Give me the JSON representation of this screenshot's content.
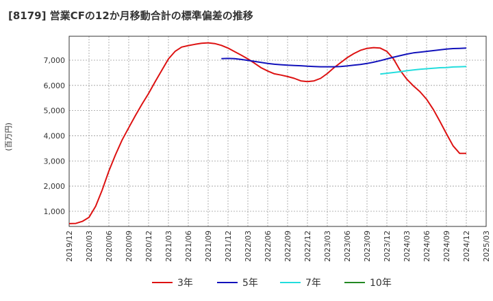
{
  "title": "[8179]  営業CFの12か月移動合計の標準偏差の推移",
  "chart_data": {
    "type": "line",
    "title": "[8179]  営業CFの12か月移動合計の標準偏差の推移",
    "ylabel": "(百万円)",
    "xlabel": "",
    "ylim": [
      400,
      7950
    ],
    "y_ticks": [
      1000,
      2000,
      3000,
      4000,
      5000,
      6000,
      7000
    ],
    "y_tick_labels": [
      "1,000",
      "2,000",
      "3,000",
      "4,000",
      "5,000",
      "6,000",
      "7,000"
    ],
    "x_tick_labels": [
      "2019/12",
      "2020/03",
      "2020/06",
      "2020/09",
      "2020/12",
      "2021/03",
      "2021/06",
      "2021/09",
      "2021/12",
      "2022/03",
      "2022/06",
      "2022/09",
      "2022/12",
      "2023/03",
      "2023/06",
      "2023/09",
      "2023/12",
      "2024/03",
      "2024/06",
      "2024/09",
      "2024/12",
      "2025/03"
    ],
    "grid": true,
    "legend_position": "bottom",
    "series": [
      {
        "name": "3年",
        "color": "#dd1111",
        "x": [
          "2019/12",
          "2020/01",
          "2020/02",
          "2020/03",
          "2020/04",
          "2020/05",
          "2020/06",
          "2020/07",
          "2020/08",
          "2020/09",
          "2020/10",
          "2020/11",
          "2020/12",
          "2021/01",
          "2021/02",
          "2021/03",
          "2021/04",
          "2021/05",
          "2021/06",
          "2021/07",
          "2021/08",
          "2021/09",
          "2021/10",
          "2021/11",
          "2021/12",
          "2022/01",
          "2022/02",
          "2022/03",
          "2022/04",
          "2022/05",
          "2022/06",
          "2022/07",
          "2022/08",
          "2022/09",
          "2022/10",
          "2022/11",
          "2022/12",
          "2023/01",
          "2023/02",
          "2023/03",
          "2023/04",
          "2023/05",
          "2023/06",
          "2023/07",
          "2023/08",
          "2023/09",
          "2023/10",
          "2023/11",
          "2023/12",
          "2024/01",
          "2024/02",
          "2024/03",
          "2024/04",
          "2024/05",
          "2024/06",
          "2024/07",
          "2024/08",
          "2024/09",
          "2024/10",
          "2024/11",
          "2024/12"
        ],
        "values": [
          510,
          520,
          600,
          760,
          1200,
          1850,
          2600,
          3250,
          3830,
          4320,
          4800,
          5250,
          5680,
          6150,
          6600,
          7050,
          7350,
          7520,
          7580,
          7630,
          7670,
          7690,
          7660,
          7590,
          7480,
          7340,
          7200,
          7050,
          6880,
          6700,
          6570,
          6460,
          6410,
          6350,
          6280,
          6180,
          6150,
          6180,
          6280,
          6470,
          6700,
          6900,
          7100,
          7260,
          7390,
          7470,
          7500,
          7480,
          7350,
          7050,
          6600,
          6250,
          5980,
          5750,
          5450,
          5050,
          4580,
          4080,
          3600,
          3300,
          3300
        ]
      },
      {
        "name": "5年",
        "color": "#1111bb",
        "x": [
          "2021/11",
          "2021/12",
          "2022/01",
          "2022/02",
          "2022/03",
          "2022/04",
          "2022/05",
          "2022/06",
          "2022/07",
          "2022/08",
          "2022/09",
          "2022/10",
          "2022/11",
          "2022/12",
          "2023/01",
          "2023/02",
          "2023/03",
          "2023/04",
          "2023/05",
          "2023/06",
          "2023/07",
          "2023/08",
          "2023/09",
          "2023/10",
          "2023/11",
          "2023/12",
          "2024/01",
          "2024/02",
          "2024/03",
          "2024/04",
          "2024/05",
          "2024/06",
          "2024/07",
          "2024/08",
          "2024/09",
          "2024/10",
          "2024/11",
          "2024/12"
        ],
        "values": [
          7060,
          7070,
          7060,
          7030,
          6990,
          6950,
          6910,
          6870,
          6840,
          6820,
          6800,
          6790,
          6780,
          6760,
          6750,
          6740,
          6740,
          6740,
          6750,
          6770,
          6800,
          6830,
          6870,
          6920,
          6980,
          7050,
          7120,
          7180,
          7240,
          7290,
          7320,
          7350,
          7380,
          7410,
          7440,
          7460,
          7470,
          7480
        ]
      },
      {
        "name": "7年",
        "color": "#22dddd",
        "x": [
          "2023/11",
          "2023/12",
          "2024/01",
          "2024/02",
          "2024/03",
          "2024/04",
          "2024/05",
          "2024/06",
          "2024/07",
          "2024/08",
          "2024/09",
          "2024/10",
          "2024/11",
          "2024/12"
        ],
        "values": [
          6450,
          6480,
          6510,
          6540,
          6580,
          6610,
          6640,
          6660,
          6680,
          6700,
          6710,
          6730,
          6740,
          6750
        ]
      },
      {
        "name": "10年",
        "color": "#228822",
        "x": [],
        "values": []
      }
    ]
  }
}
